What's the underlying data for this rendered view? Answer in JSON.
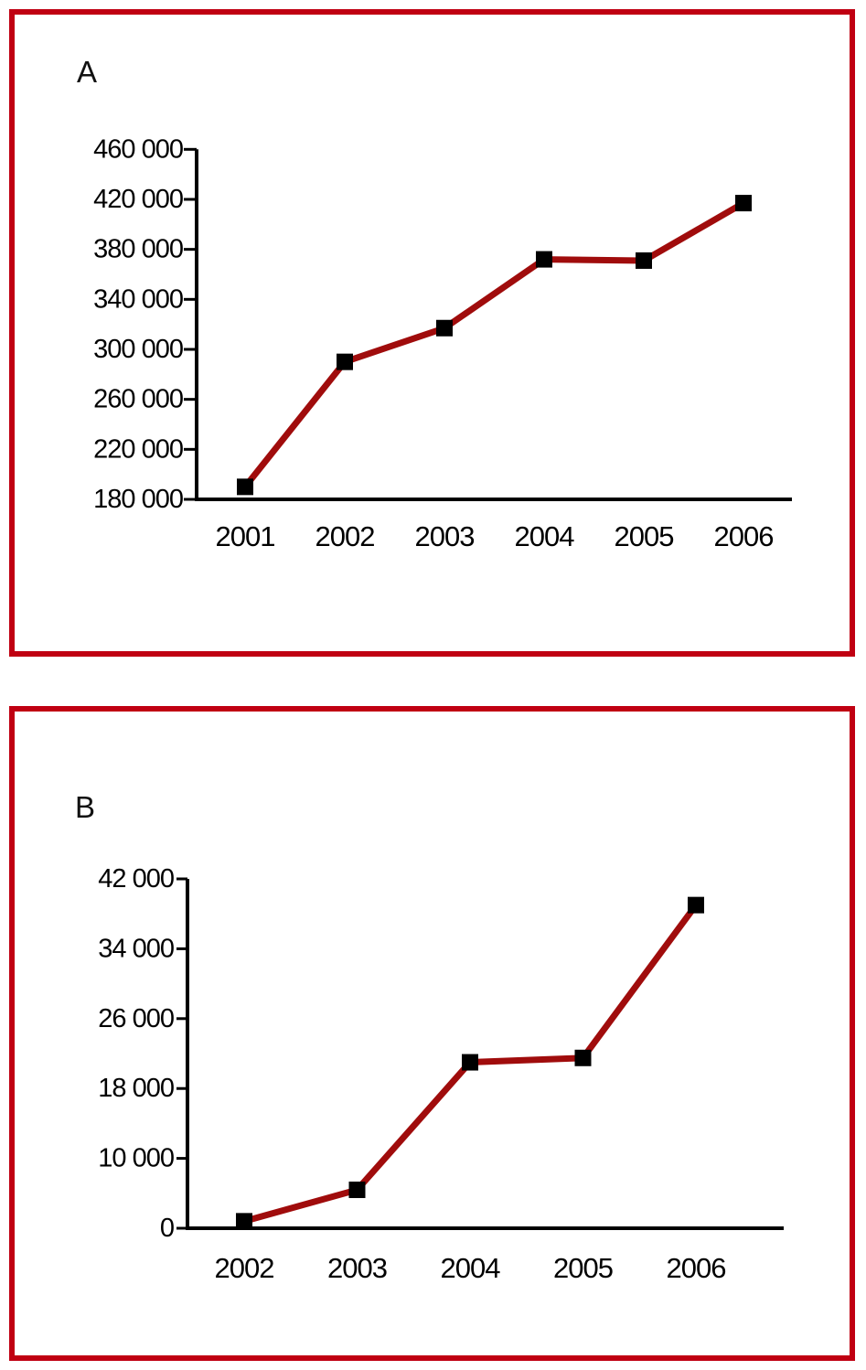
{
  "figure": {
    "background": "#ffffff",
    "panel_border_color": "#c00012",
    "axis_color": "#000000",
    "line_color": "#a00c0c",
    "marker_color": "#000000",
    "marker_shape": "square"
  },
  "panels": [
    {
      "label": "A"
    },
    {
      "label": "B"
    }
  ],
  "chart_data": [
    {
      "type": "line",
      "panel_label": "A",
      "title": "",
      "xlabel": "",
      "ylabel": "",
      "categories": [
        "2001",
        "2002",
        "2003",
        "2004",
        "2005",
        "2006"
      ],
      "values": [
        190000,
        290000,
        317000,
        372000,
        371000,
        417000
      ],
      "y_tick_values": [
        180000,
        220000,
        260000,
        300000,
        340000,
        380000,
        420000,
        460000
      ],
      "y_tick_labels": [
        "180 000",
        "220 000",
        "260 000",
        "300 000",
        "340 000",
        "380 000",
        "420 000",
        "460 000"
      ],
      "ylim": [
        180000,
        460000
      ],
      "grid": false,
      "legend": false,
      "marker": "square",
      "line_color": "#a00c0c",
      "marker_color": "#000000"
    },
    {
      "type": "line",
      "panel_label": "B",
      "title": "",
      "xlabel": "",
      "ylabel": "",
      "categories": [
        "2002",
        "2003",
        "2004",
        "2005",
        "2006"
      ],
      "values": [
        1000,
        5500,
        21000,
        21500,
        39000
      ],
      "y_tick_values": [
        0,
        10000,
        18000,
        26000,
        34000,
        42000
      ],
      "y_tick_labels": [
        "0",
        "10 000",
        "18 000",
        "26 000",
        "34 000",
        "42 000"
      ],
      "ylim": [
        0,
        42000
      ],
      "grid": false,
      "legend": false,
      "marker": "square",
      "line_color": "#a00c0c",
      "marker_color": "#000000"
    }
  ]
}
